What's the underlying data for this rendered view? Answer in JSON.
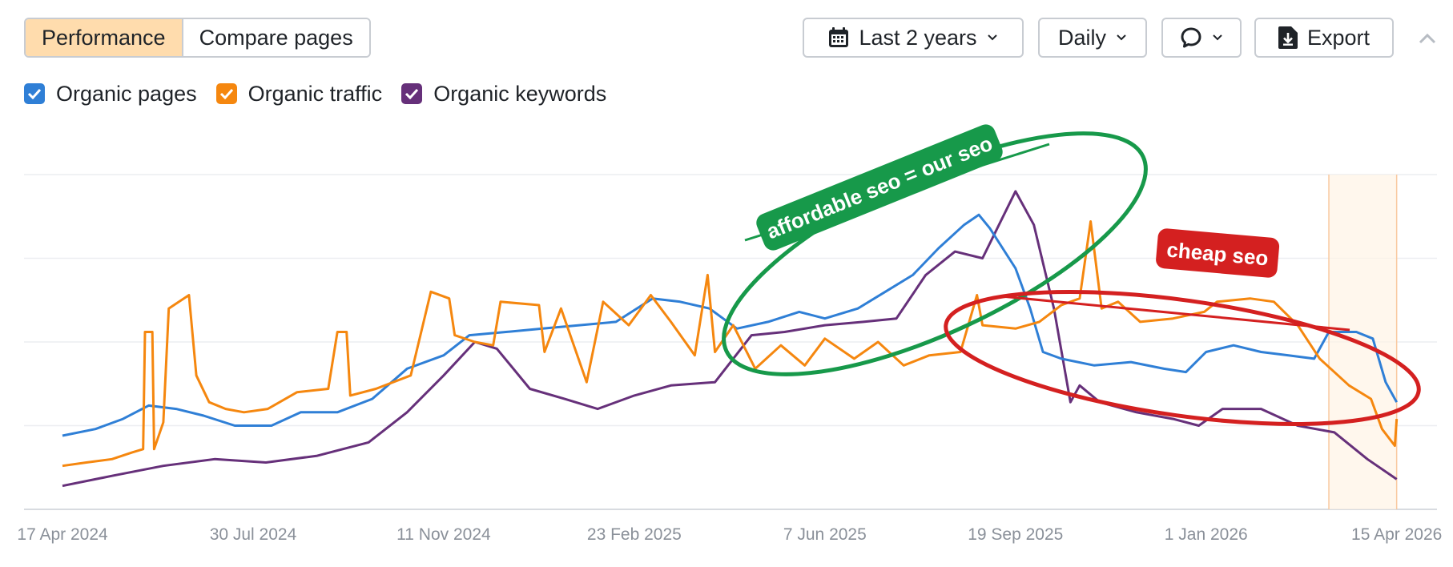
{
  "toolbar": {
    "tabs": [
      {
        "label": "Performance",
        "active": true
      },
      {
        "label": "Compare pages",
        "active": false
      }
    ],
    "date_range_label": "Last 2 years",
    "interval_label": "Daily",
    "export_label": "Export",
    "icons": {
      "date": "calendar-icon",
      "comment": "comment-icon",
      "export": "download-icon",
      "collapse": "chevron-up-icon"
    }
  },
  "legend": [
    {
      "label": "Organic pages",
      "color": "#2f7fd6",
      "checked": true
    },
    {
      "label": "Organic traffic",
      "color": "#f5870f",
      "checked": true
    },
    {
      "label": "Organic keywords",
      "color": "#66307a",
      "checked": true
    }
  ],
  "annotations": [
    {
      "text": "affordable seo = our seo",
      "color": "#17994a",
      "shape": "ellipse"
    },
    {
      "text": "cheap seo",
      "color": "#d42020",
      "shape": "ellipse"
    }
  ],
  "chart_data": {
    "type": "line",
    "x_axis": {
      "type": "date",
      "range": [
        "2024-03-27",
        "2026-05-07"
      ],
      "ticks": [
        {
          "date": "2024-04-17",
          "label": "17 Apr 2024"
        },
        {
          "date": "2024-07-30",
          "label": "30 Jul 2024"
        },
        {
          "date": "2024-11-11",
          "label": "11 Nov 2024"
        },
        {
          "date": "2025-02-23",
          "label": "23 Feb 2025"
        },
        {
          "date": "2025-06-07",
          "label": "7 Jun 2025"
        },
        {
          "date": "2025-09-19",
          "label": "19 Sep 2025"
        },
        {
          "date": "2026-01-01",
          "label": "1 Jan 2026"
        },
        {
          "date": "2026-04-15",
          "label": "15 Apr 2026"
        }
      ]
    },
    "y_axis": {
      "range": [
        0,
        100
      ],
      "gridlines": 4,
      "labels": false
    },
    "grid": true,
    "highlight_range": [
      "2026-03-09",
      "2026-04-15"
    ],
    "series": [
      {
        "name": "Organic pages",
        "color": "#2f7fd6",
        "points": [
          [
            "2024-04-17",
            22
          ],
          [
            "2024-05-05",
            24
          ],
          [
            "2024-05-20",
            27
          ],
          [
            "2024-06-03",
            31
          ],
          [
            "2024-06-18",
            30
          ],
          [
            "2024-07-03",
            28
          ],
          [
            "2024-07-20",
            25
          ],
          [
            "2024-08-09",
            25
          ],
          [
            "2024-08-25",
            29
          ],
          [
            "2024-09-14",
            29
          ],
          [
            "2024-10-03",
            33
          ],
          [
            "2024-10-22",
            42
          ],
          [
            "2024-11-11",
            46
          ],
          [
            "2024-11-25",
            52
          ],
          [
            "2024-12-15",
            53
          ],
          [
            "2025-01-04",
            54
          ],
          [
            "2025-01-24",
            55
          ],
          [
            "2025-02-13",
            56
          ],
          [
            "2025-03-05",
            63
          ],
          [
            "2025-03-20",
            62
          ],
          [
            "2025-04-05",
            60
          ],
          [
            "2025-04-20",
            54
          ],
          [
            "2025-05-07",
            56
          ],
          [
            "2025-05-24",
            59
          ],
          [
            "2025-06-07",
            57
          ],
          [
            "2025-06-25",
            60
          ],
          [
            "2025-07-10",
            65
          ],
          [
            "2025-07-25",
            70
          ],
          [
            "2025-08-08",
            78
          ],
          [
            "2025-08-22",
            85
          ],
          [
            "2025-08-30",
            88
          ],
          [
            "2025-09-05",
            84
          ],
          [
            "2025-09-19",
            72
          ],
          [
            "2025-09-27",
            60
          ],
          [
            "2025-10-04",
            47
          ],
          [
            "2025-10-14",
            45
          ],
          [
            "2025-11-01",
            43
          ],
          [
            "2025-11-21",
            44
          ],
          [
            "2025-12-09",
            42
          ],
          [
            "2025-12-21",
            41
          ],
          [
            "2026-01-01",
            47
          ],
          [
            "2026-01-16",
            49
          ],
          [
            "2026-01-31",
            47
          ],
          [
            "2026-02-15",
            46
          ],
          [
            "2026-03-01",
            45
          ],
          [
            "2026-03-09",
            53
          ],
          [
            "2026-03-24",
            53
          ],
          [
            "2026-04-02",
            51
          ],
          [
            "2026-04-09",
            38
          ],
          [
            "2026-04-15",
            32
          ]
        ]
      },
      {
        "name": "Organic traffic",
        "color": "#f5870f",
        "points": [
          [
            "2024-04-17",
            13
          ],
          [
            "2024-04-30",
            14
          ],
          [
            "2024-05-14",
            15
          ],
          [
            "2024-05-25",
            17
          ],
          [
            "2024-05-31",
            18
          ],
          [
            "2024-06-01",
            53
          ],
          [
            "2024-06-05",
            53
          ],
          [
            "2024-06-06",
            18
          ],
          [
            "2024-06-11",
            26
          ],
          [
            "2024-06-14",
            60
          ],
          [
            "2024-06-25",
            64
          ],
          [
            "2024-06-29",
            40
          ],
          [
            "2024-07-06",
            32
          ],
          [
            "2024-07-15",
            30
          ],
          [
            "2024-07-25",
            29
          ],
          [
            "2024-08-07",
            30
          ],
          [
            "2024-08-23",
            35
          ],
          [
            "2024-09-09",
            36
          ],
          [
            "2024-09-14",
            53
          ],
          [
            "2024-09-19",
            53
          ],
          [
            "2024-09-21",
            34
          ],
          [
            "2024-10-05",
            36
          ],
          [
            "2024-10-24",
            40
          ],
          [
            "2024-11-04",
            65
          ],
          [
            "2024-11-14",
            63
          ],
          [
            "2024-11-17",
            52
          ],
          [
            "2024-11-28",
            50
          ],
          [
            "2024-12-08",
            49
          ],
          [
            "2024-12-12",
            62
          ],
          [
            "2025-01-02",
            61
          ],
          [
            "2025-01-05",
            47
          ],
          [
            "2025-01-14",
            60
          ],
          [
            "2025-01-28",
            38
          ],
          [
            "2025-02-06",
            62
          ],
          [
            "2025-02-20",
            55
          ],
          [
            "2025-03-04",
            64
          ],
          [
            "2025-03-15",
            56
          ],
          [
            "2025-03-28",
            46
          ],
          [
            "2025-04-04",
            70
          ],
          [
            "2025-04-08",
            47
          ],
          [
            "2025-04-18",
            55
          ],
          [
            "2025-04-30",
            42
          ],
          [
            "2025-05-14",
            49
          ],
          [
            "2025-05-27",
            43
          ],
          [
            "2025-06-07",
            51
          ],
          [
            "2025-06-23",
            45
          ],
          [
            "2025-07-06",
            50
          ],
          [
            "2025-07-20",
            43
          ],
          [
            "2025-08-03",
            46
          ],
          [
            "2025-08-20",
            47
          ],
          [
            "2025-08-29",
            64
          ],
          [
            "2025-09-01",
            55
          ],
          [
            "2025-09-19",
            54
          ],
          [
            "2025-10-02",
            56
          ],
          [
            "2025-10-14",
            61
          ],
          [
            "2025-10-24",
            63
          ],
          [
            "2025-10-30",
            86
          ],
          [
            "2025-11-05",
            60
          ],
          [
            "2025-11-14",
            62
          ],
          [
            "2025-11-26",
            56
          ],
          [
            "2025-12-14",
            57
          ],
          [
            "2025-12-31",
            59
          ],
          [
            "2026-01-07",
            62
          ],
          [
            "2026-01-25",
            63
          ],
          [
            "2026-02-07",
            62
          ],
          [
            "2026-02-20",
            55
          ],
          [
            "2026-03-04",
            45
          ],
          [
            "2026-03-20",
            37
          ],
          [
            "2026-04-01",
            33
          ],
          [
            "2026-04-07",
            24
          ],
          [
            "2026-04-14",
            19
          ],
          [
            "2026-04-15",
            27
          ]
        ]
      },
      {
        "name": "Organic keywords",
        "color": "#66307a",
        "points": [
          [
            "2024-04-17",
            7
          ],
          [
            "2024-05-14",
            10
          ],
          [
            "2024-06-11",
            13
          ],
          [
            "2024-07-09",
            15
          ],
          [
            "2024-08-06",
            14
          ],
          [
            "2024-09-03",
            16
          ],
          [
            "2024-10-01",
            20
          ],
          [
            "2024-10-22",
            29
          ],
          [
            "2024-11-11",
            40
          ],
          [
            "2024-11-28",
            50
          ],
          [
            "2024-12-10",
            48
          ],
          [
            "2024-12-28",
            36
          ],
          [
            "2025-01-16",
            33
          ],
          [
            "2025-02-03",
            30
          ],
          [
            "2025-02-23",
            34
          ],
          [
            "2025-03-15",
            37
          ],
          [
            "2025-04-08",
            38
          ],
          [
            "2025-04-28",
            52
          ],
          [
            "2025-05-16",
            53
          ],
          [
            "2025-06-07",
            55
          ],
          [
            "2025-06-28",
            56
          ],
          [
            "2025-07-16",
            57
          ],
          [
            "2025-08-01",
            70
          ],
          [
            "2025-08-17",
            77
          ],
          [
            "2025-09-01",
            75
          ],
          [
            "2025-09-19",
            95
          ],
          [
            "2025-09-29",
            85
          ],
          [
            "2025-10-10",
            60
          ],
          [
            "2025-10-19",
            32
          ],
          [
            "2025-10-24",
            37
          ],
          [
            "2025-11-04",
            32
          ],
          [
            "2025-11-24",
            29
          ],
          [
            "2025-12-14",
            27
          ],
          [
            "2025-12-28",
            25
          ],
          [
            "2026-01-10",
            30
          ],
          [
            "2026-01-31",
            30
          ],
          [
            "2026-02-20",
            25
          ],
          [
            "2026-03-12",
            23
          ],
          [
            "2026-03-30",
            15
          ],
          [
            "2026-04-15",
            9
          ]
        ]
      }
    ]
  }
}
